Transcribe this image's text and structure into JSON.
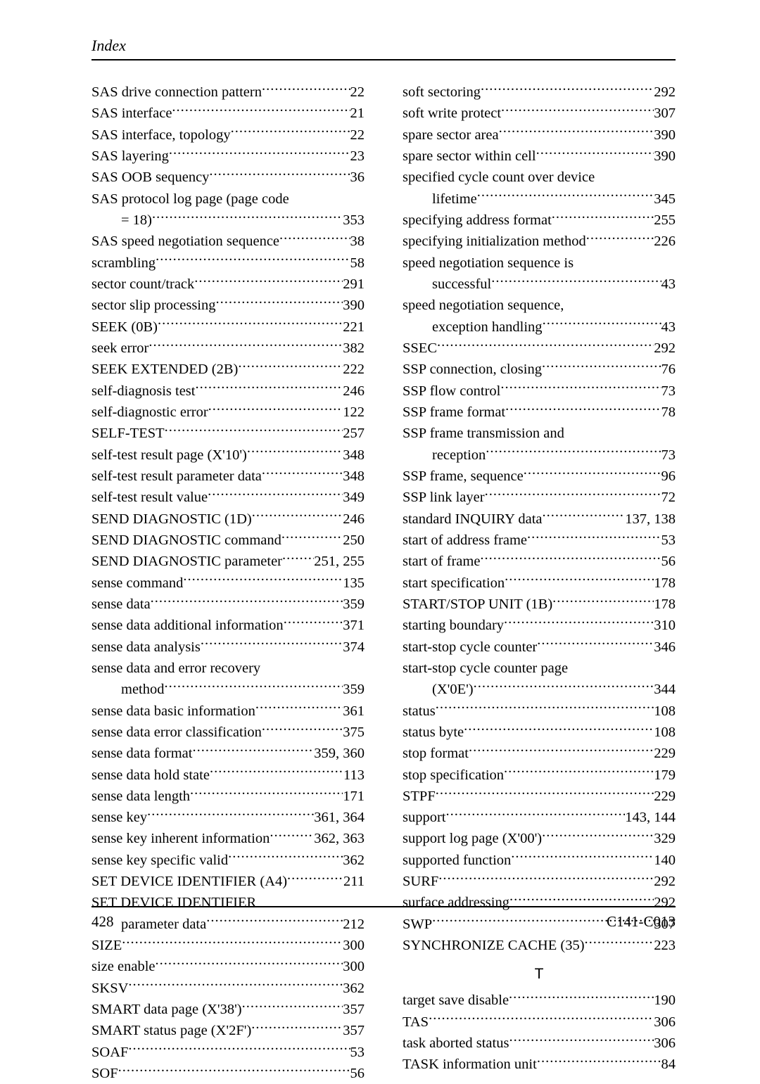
{
  "header": "Index",
  "footer": {
    "pageNumber": "428",
    "docCode": "C141-C013"
  },
  "sectionLetter": "T",
  "left": [
    {
      "term": "SAS drive connection pattern",
      "pg": "22"
    },
    {
      "term": "SAS interface",
      "pg": "21"
    },
    {
      "term": "SAS interface, topology ",
      "pg": "22"
    },
    {
      "term": "SAS layering ",
      "pg": "23"
    },
    {
      "term": "SAS OOB sequency ",
      "pg": "36"
    },
    {
      "term": "SAS protocol log page (page code ",
      "nopg": true
    },
    {
      "term": "= 18)",
      "pg": "353",
      "cont": true
    },
    {
      "term": "SAS speed negotiation sequence",
      "pg": "38"
    },
    {
      "term": "scrambling ",
      "pg": "58"
    },
    {
      "term": "sector count/track ",
      "pg": "291"
    },
    {
      "term": "sector slip processing",
      "pg": "390"
    },
    {
      "term": "SEEK (0B)",
      "pg": "221"
    },
    {
      "term": "seek error ",
      "pg": "382"
    },
    {
      "term": "SEEK EXTENDED (2B) ",
      "pg": "222"
    },
    {
      "term": "self-diagnosis test ",
      "pg": "246"
    },
    {
      "term": "self-diagnostic error",
      "pg": "122"
    },
    {
      "term": "SELF-TEST",
      "pg": "257"
    },
    {
      "term": "self-test result page (X'10')",
      "pg": "348"
    },
    {
      "term": "self-test result parameter data",
      "pg": "348"
    },
    {
      "term": "self-test result value",
      "pg": "349"
    },
    {
      "term": "SEND DIAGNOSTIC (1D)",
      "pg": "246"
    },
    {
      "term": "SEND DIAGNOSTIC command ",
      "pg": "250"
    },
    {
      "term": "SEND DIAGNOSTIC parameter ",
      "pg": "251, 255"
    },
    {
      "term": "sense command",
      "pg": "135"
    },
    {
      "term": "sense data",
      "pg": "359"
    },
    {
      "term": "sense data additional information",
      "pg": "371"
    },
    {
      "term": "sense data analysis",
      "pg": "374"
    },
    {
      "term": "sense data and error recovery ",
      "nopg": true
    },
    {
      "term": "method",
      "pg": "359",
      "cont": true
    },
    {
      "term": "sense data basic information",
      "pg": "361"
    },
    {
      "term": "sense data error classification",
      "pg": "375"
    },
    {
      "term": "sense data format",
      "pg": "359, 360"
    },
    {
      "term": "sense data hold state ",
      "pg": "113"
    },
    {
      "term": "sense data length",
      "pg": "171"
    },
    {
      "term": "sense key ",
      "pg": "361, 364"
    },
    {
      "term": "sense key inherent information",
      "pg": "362, 363"
    },
    {
      "term": "sense key specific valid ",
      "pg": "362"
    },
    {
      "term": "SET DEVICE IDENTIFIER (A4)",
      "pg": "211"
    },
    {
      "term": "SET DEVICE IDENTIFIER ",
      "nopg": true
    },
    {
      "term": "parameter data ",
      "pg": "212",
      "cont": true
    },
    {
      "term": "SIZE ",
      "pg": "300"
    },
    {
      "term": "size enable ",
      "pg": "300"
    },
    {
      "term": "SKSV",
      "pg": "362"
    },
    {
      "term": "SMART data page (X'38') ",
      "pg": "357"
    },
    {
      "term": "SMART status page (X'2F') ",
      "pg": "357"
    },
    {
      "term": "SOAF",
      "pg": "53"
    },
    {
      "term": "SOF",
      "pg": "56"
    }
  ],
  "right": [
    {
      "term": "soft sectoring",
      "pg": " 292"
    },
    {
      "term": "soft write protect",
      "pg": " 307"
    },
    {
      "term": "spare sector area",
      "pg": " 390"
    },
    {
      "term": "spare sector within cell ",
      "pg": " 390"
    },
    {
      "term": "specified cycle count over device ",
      "nopg": true
    },
    {
      "term": "lifetime",
      "pg": " 345",
      "cont": true
    },
    {
      "term": "specifying address format ",
      "pg": " 255"
    },
    {
      "term": "specifying initialization method",
      "pg": " 226"
    },
    {
      "term": "speed negotiation sequence is ",
      "nopg": true
    },
    {
      "term": "successful",
      "pg": " 43",
      "cont": true
    },
    {
      "term": "speed negotiation sequence, ",
      "nopg": true
    },
    {
      "term": "exception handling",
      "pg": " 43",
      "cont": true
    },
    {
      "term": "SSEC",
      "pg": " 292"
    },
    {
      "term": "SSP connection, closing",
      "pg": " 76"
    },
    {
      "term": "SSP flow control",
      "pg": " 73"
    },
    {
      "term": "SSP frame format",
      "pg": " 78"
    },
    {
      "term": "SSP frame transmission and ",
      "nopg": true
    },
    {
      "term": "reception ",
      "pg": " 73",
      "cont": true
    },
    {
      "term": "SSP frame, sequence",
      "pg": " 96"
    },
    {
      "term": "SSP link layer ",
      "pg": " 72"
    },
    {
      "term": "standard INQUIRY data ",
      "pg": " 137, 138"
    },
    {
      "term": "start of address frame",
      "pg": " 53"
    },
    {
      "term": "start of frame",
      "pg": " 56"
    },
    {
      "term": "start specification ",
      "pg": " 178"
    },
    {
      "term": "START/STOP UNIT (1B)",
      "pg": " 178"
    },
    {
      "term": "starting boundary ",
      "pg": " 310"
    },
    {
      "term": "start-stop cycle counter ",
      "pg": " 346"
    },
    {
      "term": "start-stop cycle counter page ",
      "nopg": true
    },
    {
      "term": "(X'0E')",
      "pg": " 344",
      "cont": true
    },
    {
      "term": "status ",
      "pg": " 108"
    },
    {
      "term": "status byte ",
      "pg": " 108"
    },
    {
      "term": "stop format",
      "pg": " 229"
    },
    {
      "term": "stop specification ",
      "pg": " 179"
    },
    {
      "term": "STPF ",
      "pg": " 229"
    },
    {
      "term": "support ",
      "pg": " 143, 144"
    },
    {
      "term": "support log page (X'00')",
      "pg": " 329"
    },
    {
      "term": "supported function ",
      "pg": " 140"
    },
    {
      "term": "SURF ",
      "pg": " 292"
    },
    {
      "term": "surface addressing",
      "pg": " 292"
    },
    {
      "term": "SWP",
      "pg": " 307"
    },
    {
      "term": "SYNCHRONIZE CACHE (35) ",
      "pg": " 223"
    }
  ],
  "rightAfter": [
    {
      "term": "target save disable",
      "pg": " 190"
    },
    {
      "term": "TAS",
      "pg": " 306"
    },
    {
      "term": "task aborted status",
      "pg": " 306"
    },
    {
      "term": "TASK information unit",
      "pg": " 84"
    }
  ]
}
